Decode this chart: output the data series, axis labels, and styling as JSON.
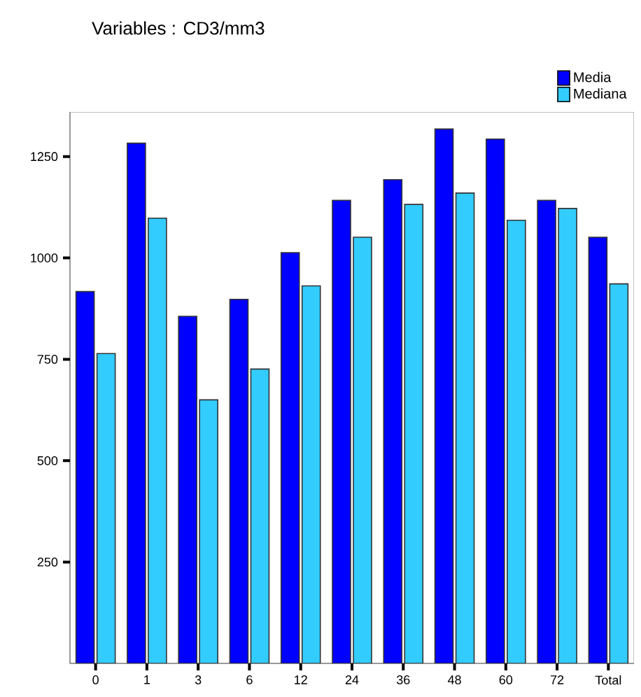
{
  "chart_data": {
    "type": "bar",
    "title": "Variables : CD3/mm3",
    "categories": [
      "0",
      "1",
      "3",
      "6",
      "12",
      "24",
      "36",
      "48",
      "60",
      "72",
      "Total"
    ],
    "series": [
      {
        "name": "Media",
        "color": "#0000ff",
        "values": [
          917,
          1283,
          856,
          898,
          1013,
          1142,
          1193,
          1318,
          1293,
          1142,
          1051
        ]
      },
      {
        "name": "Mediana",
        "color": "#33ccff",
        "values": [
          764,
          1098,
          650,
          726,
          931,
          1051,
          1132,
          1160,
          1093,
          1122,
          936
        ]
      }
    ],
    "ylim": [
      0,
      1360
    ],
    "yticks": [
      250,
      500,
      750,
      1000,
      1250
    ],
    "grid": false,
    "legend": "top right"
  }
}
